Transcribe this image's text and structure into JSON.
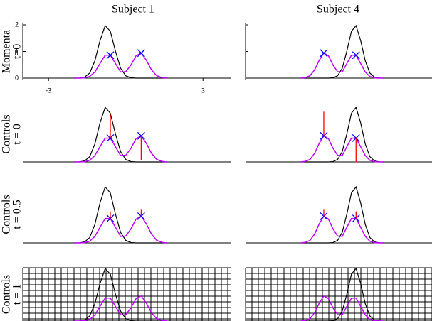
{
  "column_titles": [
    "Subject 1",
    "Subject 4"
  ],
  "row_labels": [
    [
      "Momenta",
      "t=0"
    ],
    [
      "Controls",
      "t = 0"
    ],
    [
      "Controls",
      "t = 0.5"
    ],
    [
      "Controls",
      "t = 1"
    ]
  ],
  "chart_data": [
    {
      "type": "line",
      "xlim": [
        -4,
        4.1
      ],
      "ylim": [
        0,
        2
      ],
      "yticks": [
        0,
        1,
        2
      ],
      "xticks": [
        -3,
        3
      ],
      "x": [
        -2.0,
        -1.8,
        -1.6,
        -1.4,
        -1.2,
        -1.0,
        -0.8,
        -0.6,
        -0.4,
        -0.2,
        0,
        0.2,
        0.4,
        0.6,
        0.8,
        1.0,
        1.2,
        1.4,
        1.6
      ],
      "series": [
        {
          "color": "#000000",
          "values": [
            0,
            0.005,
            0.036,
            0.19,
            0.65,
            1.41,
            1.97,
            1.76,
            1.01,
            0.37,
            0.088,
            0.013,
            0,
            0,
            0,
            0,
            0,
            0,
            0
          ]
        },
        {
          "color": "#c000ff",
          "values": [
            0,
            0,
            0.01,
            0.06,
            0.23,
            0.55,
            0.86,
            0.86,
            0.55,
            0.23,
            0.24,
            0.49,
            0.84,
            0.94,
            0.67,
            0.31,
            0.09,
            0.02,
            0
          ]
        }
      ]
    },
    {
      "type": "line",
      "xlim": [
        -4,
        4.1
      ],
      "ylim": [
        0,
        2
      ],
      "yticks": [
        0,
        1,
        2
      ],
      "x": [
        -1.6,
        -1.4,
        -1.2,
        -1.0,
        -0.8,
        -0.6,
        -0.4,
        -0.2,
        0,
        0.2,
        0.4,
        0.6,
        0.8,
        1.0,
        1.2,
        1.4,
        1.6,
        1.8,
        2.0
      ],
      "series": [
        {
          "color": "#000000",
          "values": [
            0,
            0,
            0,
            0,
            0,
            0,
            0,
            0.013,
            0.088,
            0.37,
            1.01,
            1.76,
            1.97,
            1.41,
            0.65,
            0.19,
            0.036,
            0.005,
            0
          ]
        },
        {
          "color": "#c000ff",
          "values": [
            0,
            0.02,
            0.09,
            0.31,
            0.67,
            0.94,
            0.84,
            0.49,
            0.24,
            0.23,
            0.55,
            0.86,
            0.86,
            0.55,
            0.23,
            0.06,
            0.01,
            0,
            0
          ]
        }
      ]
    }
  ]
}
